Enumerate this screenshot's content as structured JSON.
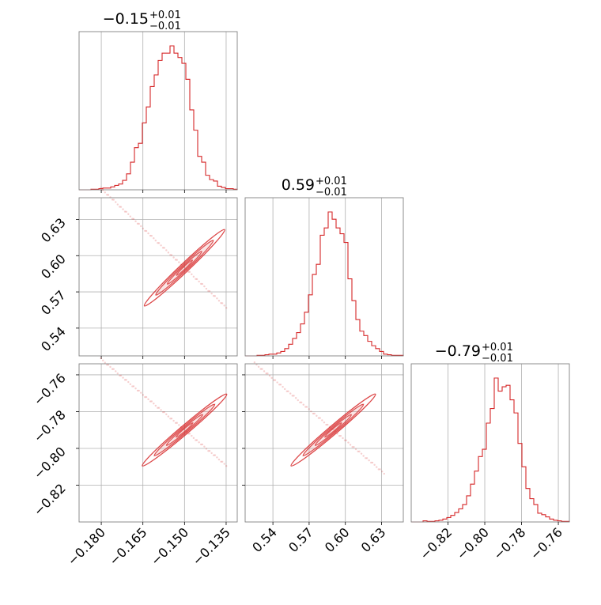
{
  "chart_data": {
    "type": "corner",
    "colors": {
      "line": "#d62728",
      "grid": "#b0b0b0",
      "frame": "#808080"
    },
    "parameters": [
      {
        "title": {
          "base": "−0.15",
          "sup": "+0.01",
          "sub": "−0.01"
        },
        "range": [
          -0.188,
          -0.131
        ],
        "ticks": [
          -0.18,
          -0.165,
          -0.15,
          -0.135
        ],
        "tick_labels": [
          "−0.180",
          "−0.165",
          "−0.150",
          "−0.135"
        ],
        "hist_heights": [
          0,
          0,
          0,
          0.004,
          0.004,
          0.008,
          0.012,
          0.012,
          0.02,
          0.03,
          0.04,
          0.065,
          0.11,
          0.19,
          0.29,
          0.32,
          0.46,
          0.57,
          0.71,
          0.79,
          0.89,
          0.94,
          0.94,
          0.99,
          0.94,
          0.91,
          0.87,
          0.76,
          0.55,
          0.41,
          0.23,
          0.19,
          0.1,
          0.07,
          0.06,
          0.025,
          0.016,
          0.008,
          0.008,
          0.004
        ]
      },
      {
        "title": {
          "base": "0.59",
          "sup": "+0.01",
          "sub": "−0.01"
        },
        "range": [
          0.517,
          0.648
        ],
        "ticks": [
          0.54,
          0.57,
          0.6,
          0.63
        ],
        "tick_labels": [
          "0.54",
          "0.57",
          "0.60",
          "0.63"
        ],
        "hist_heights": [
          0,
          0,
          0,
          0.004,
          0.004,
          0.008,
          0.012,
          0.012,
          0.02,
          0.03,
          0.05,
          0.08,
          0.12,
          0.16,
          0.22,
          0.3,
          0.42,
          0.56,
          0.63,
          0.83,
          0.88,
          0.99,
          0.94,
          0.88,
          0.84,
          0.78,
          0.53,
          0.38,
          0.25,
          0.17,
          0.14,
          0.1,
          0.07,
          0.05,
          0.03,
          0.012,
          0.008,
          0.004,
          0.004,
          0.004
        ]
      },
      {
        "title": {
          "base": "−0.79",
          "sup": "+0.01",
          "sub": "−0.01"
        },
        "range": [
          -0.84,
          -0.754
        ],
        "ticks": [
          -0.82,
          -0.8,
          -0.78,
          -0.76
        ],
        "tick_labels": [
          "−0.82",
          "−0.80",
          "−0.78",
          "−0.76"
        ],
        "hist_heights": [
          0,
          0,
          0,
          0.008,
          0.004,
          0.004,
          0.008,
          0.012,
          0.02,
          0.03,
          0.045,
          0.065,
          0.09,
          0.12,
          0.18,
          0.26,
          0.35,
          0.45,
          0.5,
          0.68,
          0.78,
          0.99,
          0.9,
          0.93,
          0.94,
          0.84,
          0.75,
          0.54,
          0.38,
          0.23,
          0.16,
          0.12,
          0.06,
          0.05,
          0.035,
          0.02,
          0.012,
          0.008,
          0.004,
          0.004
        ]
      }
    ],
    "pairs": [
      {
        "x": 0,
        "y": 1,
        "slope": 0.95,
        "extent": [
          -0.18,
          -0.135
        ]
      },
      {
        "x": 0,
        "y": 2,
        "slope": 0.85,
        "extent": [
          -0.18,
          -0.135
        ]
      },
      {
        "x": 1,
        "y": 2,
        "slope": 0.85,
        "extent": [
          0.525,
          0.632
        ]
      }
    ]
  }
}
